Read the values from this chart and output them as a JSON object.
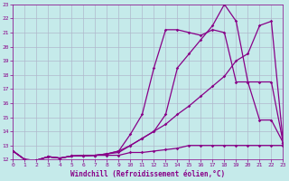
{
  "xlabel": "Windchill (Refroidissement éolien,°C)",
  "xlim": [
    0,
    23
  ],
  "ylim": [
    12,
    23
  ],
  "xticks": [
    0,
    1,
    2,
    3,
    4,
    5,
    6,
    7,
    8,
    9,
    10,
    11,
    12,
    13,
    14,
    15,
    16,
    17,
    18,
    19,
    20,
    21,
    22,
    23
  ],
  "yticks": [
    12,
    13,
    14,
    15,
    16,
    17,
    18,
    19,
    20,
    21,
    22,
    23
  ],
  "bg_color": "#c5eaea",
  "grid_color": "#b0b8cc",
  "line_color": "#880088",
  "lines": [
    {
      "x": [
        0,
        1,
        2,
        3,
        4,
        5,
        6,
        7,
        8,
        9,
        10,
        11,
        12,
        13,
        14,
        15,
        16,
        17,
        18,
        19,
        20,
        21,
        22,
        23
      ],
      "y": [
        12.6,
        12.0,
        11.95,
        12.2,
        12.1,
        12.25,
        12.25,
        12.3,
        12.3,
        12.3,
        12.5,
        12.5,
        12.6,
        12.7,
        12.8,
        13.0,
        13.0,
        13.0,
        13.0,
        13.0,
        13.0,
        13.0,
        13.0,
        13.0
      ]
    },
    {
      "x": [
        0,
        1,
        2,
        3,
        4,
        5,
        6,
        7,
        8,
        9,
        10,
        11,
        12,
        13,
        14,
        15,
        16,
        17,
        18,
        19,
        20,
        21,
        22,
        23
      ],
      "y": [
        12.6,
        12.0,
        11.95,
        12.2,
        12.1,
        12.25,
        12.25,
        12.3,
        12.4,
        12.5,
        13.0,
        13.5,
        14.0,
        14.5,
        15.2,
        15.8,
        16.5,
        17.2,
        17.9,
        19.0,
        19.5,
        21.5,
        21.8,
        13.2
      ]
    },
    {
      "x": [
        0,
        1,
        2,
        3,
        4,
        5,
        6,
        7,
        8,
        9,
        10,
        11,
        12,
        13,
        14,
        15,
        16,
        17,
        18,
        19,
        20,
        21,
        22,
        23
      ],
      "y": [
        12.6,
        12.0,
        11.95,
        12.2,
        12.1,
        12.25,
        12.3,
        12.3,
        12.4,
        12.6,
        13.8,
        15.2,
        18.5,
        21.2,
        21.2,
        21.0,
        20.8,
        21.2,
        21.0,
        17.5,
        17.5,
        17.5,
        17.5,
        13.2
      ]
    },
    {
      "x": [
        0,
        1,
        2,
        3,
        4,
        5,
        6,
        7,
        8,
        9,
        10,
        11,
        12,
        13,
        14,
        15,
        16,
        17,
        18,
        19,
        20,
        21,
        22,
        23
      ],
      "y": [
        12.6,
        12.0,
        11.95,
        12.2,
        12.1,
        12.25,
        12.3,
        12.3,
        12.4,
        12.6,
        13.0,
        13.5,
        14.0,
        15.2,
        18.5,
        19.5,
        20.5,
        21.5,
        23.0,
        21.8,
        17.5,
        14.8,
        14.8,
        13.2
      ]
    }
  ]
}
